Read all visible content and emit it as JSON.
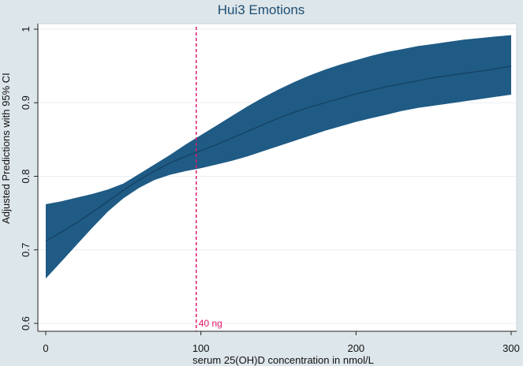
{
  "chart_data": {
    "type": "area",
    "title": "Hui3 Emotions",
    "xlabel": "serum 25(OH)D concentration in nmol/L",
    "ylabel": "Adjusted Predictions with 95% CI",
    "xlim": [
      0,
      300
    ],
    "ylim": [
      0.6,
      1.0
    ],
    "xticks": [
      "0",
      "100",
      "200",
      "300"
    ],
    "yticks": [
      "0.6",
      "0.7",
      "0.8",
      "0.9",
      "1"
    ],
    "grid": true,
    "x": [
      0,
      10,
      20,
      30,
      40,
      50,
      60,
      70,
      80,
      90,
      100,
      110,
      120,
      130,
      140,
      150,
      160,
      170,
      180,
      190,
      200,
      210,
      220,
      230,
      240,
      250,
      260,
      270,
      280,
      290,
      300
    ],
    "y": [
      0.712,
      0.724,
      0.737,
      0.751,
      0.766,
      0.781,
      0.795,
      0.807,
      0.818,
      0.827,
      0.835,
      0.843,
      0.852,
      0.861,
      0.87,
      0.879,
      0.887,
      0.894,
      0.9,
      0.906,
      0.912,
      0.917,
      0.922,
      0.926,
      0.93,
      0.934,
      0.937,
      0.94,
      0.943,
      0.946,
      0.95
    ],
    "lower": [
      0.661,
      0.684,
      0.707,
      0.73,
      0.752,
      0.77,
      0.784,
      0.795,
      0.802,
      0.807,
      0.811,
      0.816,
      0.821,
      0.827,
      0.834,
      0.841,
      0.848,
      0.855,
      0.862,
      0.868,
      0.874,
      0.879,
      0.884,
      0.889,
      0.893,
      0.896,
      0.899,
      0.902,
      0.905,
      0.908,
      0.911
    ],
    "upper": [
      0.762,
      0.766,
      0.771,
      0.776,
      0.782,
      0.79,
      0.803,
      0.816,
      0.829,
      0.843,
      0.856,
      0.869,
      0.882,
      0.895,
      0.907,
      0.918,
      0.928,
      0.937,
      0.945,
      0.952,
      0.958,
      0.964,
      0.969,
      0.973,
      0.977,
      0.98,
      0.983,
      0.986,
      0.988,
      0.99,
      0.992
    ],
    "reference_line": {
      "x": 97,
      "label": "40 ng",
      "color": "#e0196a"
    },
    "colors": {
      "band": "#1f5b85",
      "line": "#153f60",
      "background": "#dde6ea",
      "plot": "#ffffff",
      "grid": "#e8eef2"
    }
  }
}
